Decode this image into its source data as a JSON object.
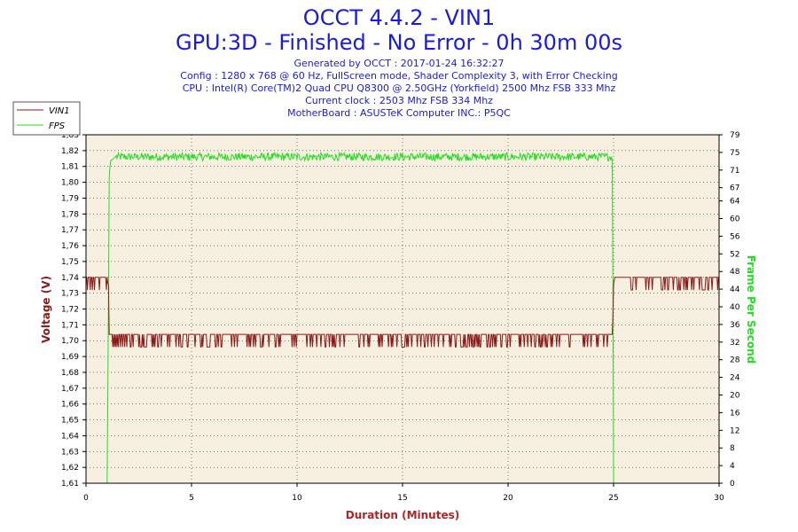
{
  "header": {
    "title_line1": "OCCT 4.4.2 - VIN1",
    "title_line2": "GPU:3D - Finished - No Error - 0h 30m 00s",
    "generated": "Generated by OCCT : 2017-01-24 16:32:27",
    "config": "Config : 1280 x 768 @ 60 Hz, FullScreen mode, Shader Complexity 3, with Error Checking",
    "cpu": "CPU : Intel(R) Core(TM)2 Quad CPU Q8300 @ 2.50GHz (Yorkfield) 2500 Mhz FSB 333 Mhz",
    "clock": "Current clock : 2503 Mhz FSB 334 Mhz",
    "motherboard": "MotherBoard : ASUSTeK Computer INC.: P5QC"
  },
  "colors": {
    "title": "#1a1adc",
    "vin1_line": "#8b1a1a",
    "fps_line": "#22dd22",
    "plot_bg": "#f7efe0",
    "axis_left": "#8b1a1a",
    "axis_right": "#22dd22",
    "xlabel": "#b22222"
  },
  "chart_data": {
    "type": "line",
    "xlabel": "Duration (Minutes)",
    "ylabel_left": "Voltage (V)",
    "ylabel_right": "Frame Per Second",
    "xlim": [
      0,
      30
    ],
    "ylim_left": [
      1.61,
      1.83
    ],
    "ylim_right": [
      0,
      79
    ],
    "x_ticks": [
      "0",
      "5",
      "10",
      "15",
      "20",
      "25",
      "30"
    ],
    "y_left_ticks": [
      "1,61",
      "1,62",
      "1,63",
      "1,64",
      "1,65",
      "1,66",
      "1,67",
      "1,68",
      "1,69",
      "1,70",
      "1,71",
      "1,72",
      "1,73",
      "1,74",
      "1,75",
      "1,76",
      "1,77",
      "1,78",
      "1,79",
      "1,80",
      "1,81",
      "1,82",
      "1,83"
    ],
    "y_right_ticks": [
      "0",
      "4",
      "8",
      "12",
      "16",
      "20",
      "24",
      "28",
      "32",
      "36",
      "40",
      "44",
      "48",
      "52",
      "56",
      "60",
      "64",
      "67",
      "71",
      "75",
      "79"
    ],
    "grid": true,
    "legend_position": "top-left",
    "series": [
      {
        "name": "VIN1",
        "axis": "left",
        "color": "#8b1a1a",
        "x": [
          0.0,
          1.0,
          1.05,
          1.08,
          1.1,
          24.95,
          25.0,
          25.05,
          30.0
        ],
        "values": [
          1.74,
          1.74,
          1.735,
          1.735,
          1.704,
          1.704,
          1.735,
          1.74,
          1.74
        ],
        "noise": "intermittent downward dips of ~0.008 V throughout"
      },
      {
        "name": "FPS",
        "axis": "right",
        "color": "#22dd22",
        "x": [
          0.0,
          1.0,
          1.05,
          1.1,
          1.15,
          1.4,
          24.9,
          24.95,
          25.0,
          30.0
        ],
        "values": [
          0,
          0,
          30,
          69,
          73,
          74,
          74,
          73,
          0,
          0
        ],
        "noise": "small fluctuations of about ±1 FPS around 74"
      }
    ]
  }
}
